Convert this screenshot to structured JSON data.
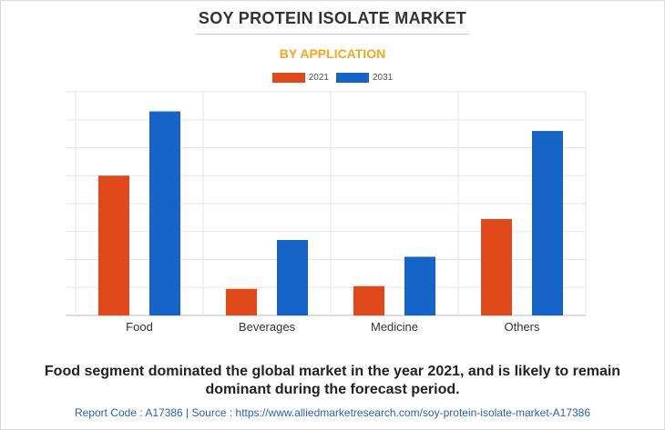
{
  "header": {
    "title": "SOY PROTEIN ISOLATE MARKET",
    "subtitle": "BY APPLICATION"
  },
  "chart_data": {
    "type": "bar",
    "categories": [
      "Food",
      "Beverages",
      "Medicine",
      "Others"
    ],
    "series": [
      {
        "name": "2021",
        "color": "#e0491a",
        "values": [
          5.0,
          0.95,
          1.05,
          3.45
        ]
      },
      {
        "name": "2031",
        "color": "#1565c9",
        "values": [
          7.3,
          2.7,
          2.1,
          6.6
        ]
      }
    ],
    "ylim": [
      0,
      8
    ],
    "grid": true,
    "legend": "top-center",
    "title": "SOY PROTEIN ISOLATE MARKET",
    "subtitle": "BY APPLICATION",
    "xlabel": "",
    "ylabel": ""
  },
  "caption": "Food segment dominated the global market in the year 2021, and is likely to remain dominant during the forecast period.",
  "footer": "Report Code : A17386  |  Source : https://www.alliedmarketresearch.com/soy-protein-isolate-market-A17386"
}
